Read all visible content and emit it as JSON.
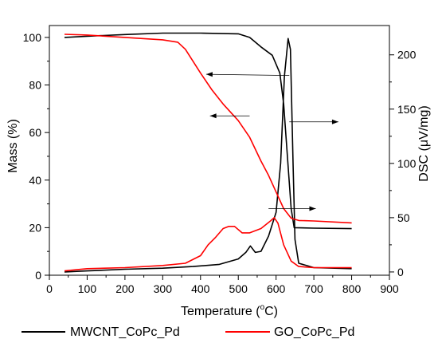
{
  "chart_data": {
    "type": "line",
    "title": "",
    "xlabel_main": "Temperature (",
    "xlabel_sup": "o",
    "xlabel_end": "C)",
    "ylabel_left": "Mass (%)",
    "ylabel_right": "DSC (μV/mg)",
    "xlim": [
      0,
      900
    ],
    "ylim_left": [
      0,
      105
    ],
    "ylim_right": [
      -3,
      227
    ],
    "x_ticks": [
      "0",
      "100",
      "200",
      "300",
      "400",
      "500",
      "600",
      "700",
      "800",
      "900"
    ],
    "y_left_ticks": [
      "0",
      "20",
      "40",
      "60",
      "80",
      "100"
    ],
    "y_right_ticks": [
      "0",
      "50",
      "100",
      "150",
      "200"
    ],
    "legend_position": "bottom",
    "series": [
      {
        "name": "MWCNT_CoPc_Pd",
        "color": "#000000",
        "curves": [
          {
            "kind": "mass",
            "axis": "left",
            "points": [
              [
                40,
                100
              ],
              [
                100,
                100.5
              ],
              [
                200,
                101.2
              ],
              [
                300,
                101.8
              ],
              [
                400,
                101.8
              ],
              [
                500,
                101.5
              ],
              [
                530,
                100
              ],
              [
                560,
                96
              ],
              [
                590,
                92.5
              ],
              [
                610,
                85
              ],
              [
                620,
                72
              ],
              [
                630,
                50
              ],
              [
                640,
                28
              ],
              [
                648,
                20
              ],
              [
                700,
                19.8
              ],
              [
                800,
                19.6
              ]
            ]
          },
          {
            "kind": "dsc",
            "axis": "right",
            "points": [
              [
                40,
                0
              ],
              [
                100,
                1
              ],
              [
                200,
                2.5
              ],
              [
                300,
                3.5
              ],
              [
                380,
                5
              ],
              [
                450,
                7
              ],
              [
                500,
                12
              ],
              [
                520,
                18
              ],
              [
                532,
                24
              ],
              [
                545,
                18
              ],
              [
                560,
                19
              ],
              [
                580,
                33
              ],
              [
                600,
                55
              ],
              [
                612,
                100
              ],
              [
                622,
                180
              ],
              [
                632,
                215
              ],
              [
                638,
                205
              ],
              [
                645,
                100
              ],
              [
                650,
                30
              ],
              [
                660,
                8
              ],
              [
                700,
                4
              ],
              [
                800,
                3
              ]
            ]
          }
        ]
      },
      {
        "name": "GO_CoPc_Pd",
        "color": "#ff0000",
        "curves": [
          {
            "kind": "mass",
            "axis": "left",
            "points": [
              [
                40,
                101.3
              ],
              [
                100,
                101
              ],
              [
                200,
                100
              ],
              [
                300,
                99
              ],
              [
                340,
                98
              ],
              [
                360,
                95
              ],
              [
                380,
                90
              ],
              [
                400,
                85
              ],
              [
                430,
                78
              ],
              [
                460,
                72
              ],
              [
                500,
                65
              ],
              [
                530,
                58
              ],
              [
                560,
                48
              ],
              [
                580,
                42
              ],
              [
                600,
                35
              ],
              [
                620,
                28
              ],
              [
                640,
                24
              ],
              [
                660,
                23
              ],
              [
                700,
                22.8
              ],
              [
                800,
                22
              ]
            ]
          },
          {
            "kind": "dsc",
            "axis": "right",
            "points": [
              [
                40,
                1
              ],
              [
                100,
                3
              ],
              [
                200,
                4
              ],
              [
                300,
                6
              ],
              [
                360,
                8
              ],
              [
                400,
                15
              ],
              [
                420,
                25
              ],
              [
                440,
                32
              ],
              [
                460,
                40
              ],
              [
                475,
                42
              ],
              [
                490,
                42
              ],
              [
                510,
                36
              ],
              [
                530,
                36
              ],
              [
                560,
                40
              ],
              [
                585,
                47
              ],
              [
                595,
                50
              ],
              [
                605,
                45
              ],
              [
                620,
                25
              ],
              [
                640,
                10
              ],
              [
                660,
                5
              ],
              [
                700,
                4
              ],
              [
                800,
                4
              ]
            ]
          }
        ]
      }
    ],
    "annotations": [
      {
        "kind": "arrow",
        "axis": "left",
        "from": [
          635,
          84
        ],
        "to": [
          415,
          84.5
        ]
      },
      {
        "kind": "arrow",
        "axis": "left",
        "from": [
          530,
          67
        ],
        "to": [
          425,
          67
        ]
      },
      {
        "kind": "arrow",
        "axis": "left",
        "from": [
          635,
          64.5
        ],
        "to": [
          765,
          64.5
        ]
      },
      {
        "kind": "arrow",
        "axis": "left",
        "from": [
          580,
          28
        ],
        "to": [
          705,
          28
        ]
      }
    ]
  }
}
